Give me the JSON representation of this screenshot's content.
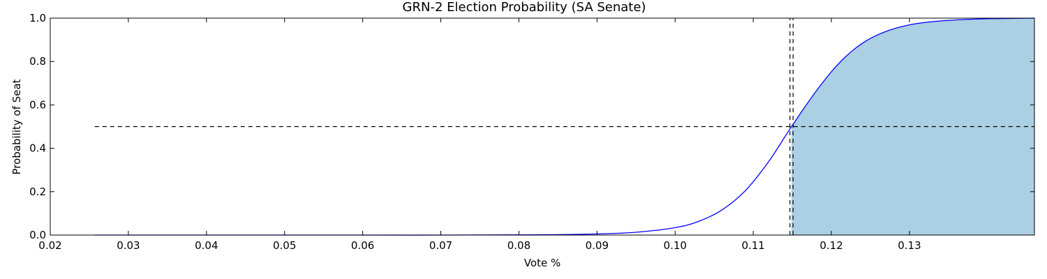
{
  "chart_data": {
    "type": "area",
    "title": "GRN-2 Election Probability (SA Senate)",
    "xlabel": "Vote %",
    "ylabel": "Probability of Seat",
    "xlim": [
      0.02,
      0.146
    ],
    "ylim": [
      0.0,
      1.0
    ],
    "x_ticks": [
      0.02,
      0.03,
      0.04,
      0.05,
      0.06,
      0.07,
      0.08,
      0.09,
      0.1,
      0.11,
      0.12,
      0.13
    ],
    "x_tick_labels": [
      "0.02",
      "0.03",
      "0.04",
      "0.05",
      "0.06",
      "0.07",
      "0.08",
      "0.09",
      "0.10",
      "0.11",
      "0.12",
      "0.13"
    ],
    "y_ticks": [
      0.0,
      0.2,
      0.4,
      0.6,
      0.8,
      1.0
    ],
    "y_tick_labels": [
      "0.0",
      "0.2",
      "0.4",
      "0.6",
      "0.8",
      "1.0"
    ],
    "grid": false,
    "series": [
      {
        "x": [
          0.0257,
          0.03,
          0.04,
          0.05,
          0.06,
          0.07,
          0.08,
          0.085,
          0.09,
          0.095,
          0.1,
          0.103,
          0.106,
          0.109,
          0.112,
          0.1149,
          0.118,
          0.121,
          0.124,
          0.127,
          0.13,
          0.133,
          0.136,
          0.14,
          0.146
        ],
        "values": [
          0.0,
          0.0,
          0.0,
          0.0,
          0.0,
          0.0,
          0.001,
          0.002,
          0.005,
          0.013,
          0.034,
          0.063,
          0.116,
          0.205,
          0.34,
          0.5,
          0.661,
          0.793,
          0.885,
          0.939,
          0.969,
          0.984,
          0.992,
          0.997,
          1.0
        ],
        "line_color": "#0000ff",
        "fill_color": "#abcfe3",
        "fill_from_x": 0.1149
      }
    ],
    "reference_lines": [
      {
        "orientation": "horizontal",
        "value": 0.5,
        "x_start": 0.0257,
        "x_end": 0.146,
        "style": "dashed",
        "color": "#000000"
      },
      {
        "orientation": "vertical",
        "value": 0.1147,
        "style": "dashed",
        "color": "#000000"
      },
      {
        "orientation": "vertical",
        "value": 0.1151,
        "style": "dashed",
        "color": "#000000"
      }
    ]
  }
}
